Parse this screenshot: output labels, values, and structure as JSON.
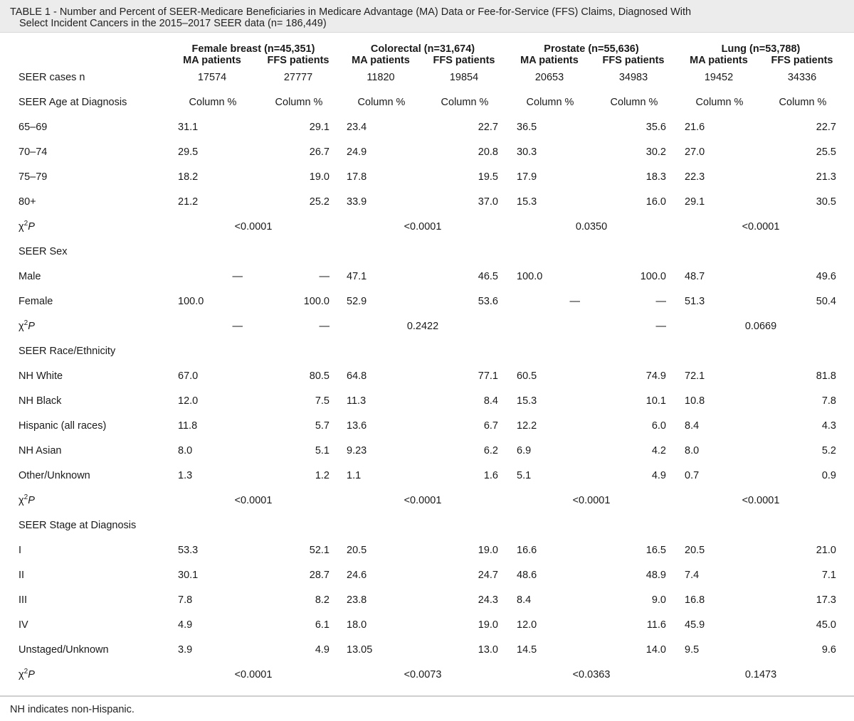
{
  "caption": {
    "line1": "TABLE 1 - Number and Percent of SEER-Medicare Beneficiaries in Medicare Advantage (MA) Data or Fee-for-Service (FFS) Claims, Diagnosed With",
    "line2": "Select Incident Cancers in the 2015–2017 SEER data (n= 186,449)"
  },
  "groups": [
    "Female breast (n=45,351)",
    "Colorectal (n=31,674)",
    "Prostate (n=55,636)",
    "Lung (n=53,788)"
  ],
  "subheaders": [
    "MA patients",
    "FFS patients",
    "MA patients",
    "FFS patients",
    "MA patients",
    "FFS patients",
    "MA patients",
    "FFS patients"
  ],
  "chi_label": {
    "chi": "χ",
    "sup": "2",
    "p": "P"
  },
  "rows": [
    {
      "label": "SEER cases n",
      "kind": "cases",
      "cells": [
        "17574",
        "27777",
        "11820",
        "19854",
        "20653",
        "34983",
        "19452",
        "34336"
      ]
    },
    {
      "label": "SEER Age at Diagnosis",
      "kind": "colpct",
      "cells": [
        "Column %",
        "Column %",
        "Column %",
        "Column %",
        "Column %",
        "Column %",
        "Column %",
        "Column %"
      ]
    },
    {
      "label": "65–69",
      "kind": "data",
      "cells": [
        "31.1",
        "29.1",
        "23.4",
        "22.7",
        "36.5",
        "35.6",
        "21.6",
        "22.7"
      ]
    },
    {
      "label": "70–74",
      "kind": "data",
      "cells": [
        "29.5",
        "26.7",
        "24.9",
        "20.8",
        "30.3",
        "30.2",
        "27.0",
        "25.5"
      ]
    },
    {
      "label": "75–79",
      "kind": "data",
      "cells": [
        "18.2",
        "19.0",
        "17.8",
        "19.5",
        "17.9",
        "18.3",
        "22.3",
        "21.3"
      ]
    },
    {
      "label": "80+",
      "kind": "data",
      "cells": [
        "21.2",
        "25.2",
        "33.9",
        "37.0",
        "15.3",
        "16.0",
        "29.1",
        "30.5"
      ]
    },
    {
      "label": "",
      "kind": "chi",
      "cells": [
        "<0.0001",
        "<0.0001",
        "0.0350",
        "<0.0001"
      ]
    },
    {
      "label": "SEER Sex",
      "kind": "section",
      "cells": []
    },
    {
      "label": "Male",
      "kind": "data",
      "cells": [
        "—",
        "—",
        "47.1",
        "46.5",
        "100.0",
        "100.0",
        "48.7",
        "49.6"
      ]
    },
    {
      "label": "Female",
      "kind": "data",
      "cells": [
        "100.0",
        "100.0",
        "52.9",
        "53.6",
        "—",
        "—",
        "51.3",
        "50.4"
      ]
    },
    {
      "label": "",
      "kind": "chi-sex",
      "cells": [
        "—",
        "—",
        "0.2422",
        "—",
        "0.0669"
      ]
    },
    {
      "label": "SEER Race/Ethnicity",
      "kind": "section",
      "cells": []
    },
    {
      "label": "NH White",
      "kind": "data",
      "cells": [
        "67.0",
        "80.5",
        "64.8",
        "77.1",
        "60.5",
        "74.9",
        "72.1",
        "81.8"
      ]
    },
    {
      "label": "NH Black",
      "kind": "data",
      "cells": [
        "12.0",
        "7.5",
        "11.3",
        "8.4",
        "15.3",
        "10.1",
        "10.8",
        "7.8"
      ]
    },
    {
      "label": "Hispanic (all races)",
      "kind": "data",
      "cells": [
        "11.8",
        "5.7",
        "13.6",
        "6.7",
        "12.2",
        "6.0",
        "8.4",
        "4.3"
      ]
    },
    {
      "label": "NH Asian",
      "kind": "data",
      "cells": [
        "8.0",
        "5.1",
        "9.23",
        "6.2",
        "6.9",
        "4.2",
        "8.0",
        "5.2"
      ]
    },
    {
      "label": "Other/Unknown",
      "kind": "data",
      "cells": [
        "1.3",
        "1.2",
        "1.1",
        "1.6",
        "5.1",
        "4.9",
        "0.7",
        "0.9"
      ]
    },
    {
      "label": "",
      "kind": "chi",
      "cells": [
        "<0.0001",
        "<0.0001",
        "<0.0001",
        "<0.0001"
      ]
    },
    {
      "label": "SEER Stage at Diagnosis",
      "kind": "section",
      "cells": []
    },
    {
      "label": "I",
      "kind": "data",
      "cells": [
        "53.3",
        "52.1",
        "20.5",
        "19.0",
        "16.6",
        "16.5",
        "20.5",
        "21.0"
      ]
    },
    {
      "label": "II",
      "kind": "data",
      "cells": [
        "30.1",
        "28.7",
        "24.6",
        "24.7",
        "48.6",
        "48.9",
        "7.4",
        "7.1"
      ]
    },
    {
      "label": "III",
      "kind": "data",
      "cells": [
        "7.8",
        "8.2",
        "23.8",
        "24.3",
        "8.4",
        "9.0",
        "16.8",
        "17.3"
      ]
    },
    {
      "label": "IV",
      "kind": "data",
      "cells": [
        "4.9",
        "6.1",
        "18.0",
        "19.0",
        "12.0",
        "11.6",
        "45.9",
        "45.0"
      ]
    },
    {
      "label": "Unstaged/Unknown",
      "kind": "data",
      "cells": [
        "3.9",
        "4.9",
        "13.05",
        "13.0",
        "14.5",
        "14.0",
        "9.5",
        "9.6"
      ]
    },
    {
      "label": "",
      "kind": "chi",
      "cells": [
        "<0.0001",
        "<0.0073",
        "<0.0363",
        "0.1473"
      ]
    }
  ],
  "footer": "NH indicates non-Hispanic."
}
